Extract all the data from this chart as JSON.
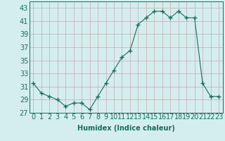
{
  "x": [
    0,
    1,
    2,
    3,
    4,
    5,
    6,
    7,
    8,
    9,
    10,
    11,
    12,
    13,
    14,
    15,
    16,
    17,
    18,
    19,
    20,
    21,
    22,
    23
  ],
  "y": [
    31.5,
    30.0,
    29.5,
    29.0,
    28.0,
    28.5,
    28.5,
    27.5,
    29.5,
    31.5,
    33.5,
    35.5,
    36.5,
    40.5,
    41.5,
    42.5,
    42.5,
    41.5,
    42.5,
    41.5,
    41.5,
    31.5,
    29.5,
    29.5
  ],
  "xlabel": "Humidex (Indice chaleur)",
  "xlim": [
    -0.5,
    23.5
  ],
  "ylim": [
    27,
    44
  ],
  "yticks": [
    27,
    29,
    31,
    33,
    35,
    37,
    39,
    41,
    43
  ],
  "xticks": [
    0,
    1,
    2,
    3,
    4,
    5,
    6,
    7,
    8,
    9,
    10,
    11,
    12,
    13,
    14,
    15,
    16,
    17,
    18,
    19,
    20,
    21,
    22,
    23
  ],
  "xtick_labels": [
    "0",
    "1",
    "2",
    "3",
    "4",
    "5",
    "6",
    "7",
    "8",
    "9",
    "10",
    "11",
    "12",
    "13",
    "14",
    "15",
    "16",
    "17",
    "18",
    "19",
    "20",
    "21",
    "22",
    "23"
  ],
  "line_color": "#1a6b5a",
  "marker": "+",
  "marker_size": 4,
  "background_color": "#d4eeee",
  "grid_color": "#c8a8a8",
  "xlabel_fontsize": 7,
  "tick_fontsize": 7
}
